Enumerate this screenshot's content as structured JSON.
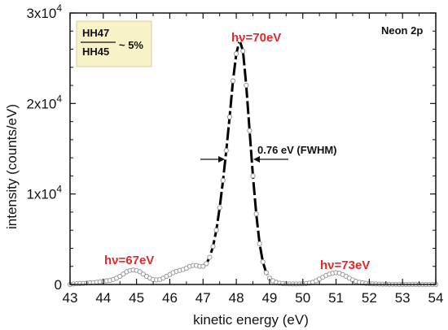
{
  "chart_data": {
    "type": "scatter",
    "xlabel": "kinetic energy (eV)",
    "ylabel": "intensity (counts/eV)",
    "xlim": [
      43,
      54
    ],
    "ylim": [
      0,
      30000
    ],
    "x_ticks": [
      "43",
      "44",
      "45",
      "46",
      "47",
      "48",
      "49",
      "50",
      "51",
      "52",
      "53",
      "54"
    ],
    "y_ticks": [
      {
        "value": 0,
        "base": "0",
        "exp": ""
      },
      {
        "value": 10000,
        "base": "1x10",
        "exp": "4"
      },
      {
        "value": 20000,
        "base": "2x10",
        "exp": "4"
      },
      {
        "value": 30000,
        "base": "3x10",
        "exp": "4"
      }
    ],
    "grid": false,
    "annotations": {
      "panel_label": "Neon 2p",
      "ratio_numerator": "HH47",
      "ratio_denominator": "HH45",
      "ratio_value": "~ 5%",
      "fwhm_label": "0.76 eV (FWHM)",
      "peak_labels": [
        {
          "prefix": "h",
          "nu": "ν",
          "suffix": "=67eV",
          "x": 44.9,
          "y": 1600
        },
        {
          "prefix": "h",
          "nu": "ν",
          "suffix": "=70eV",
          "x": 48.1,
          "y": 27000
        },
        {
          "prefix": "h",
          "nu": "ν",
          "suffix": "=73eV",
          "x": 51.0,
          "y": 1300
        }
      ]
    },
    "colors": {
      "points": "#9a9a9a",
      "line": "#000000",
      "peak_label": "#e0292b",
      "inset_bg": "#f8f2c9"
    },
    "series": [
      {
        "points": [
          [
            43.0,
            0
          ],
          [
            43.1,
            50
          ],
          [
            43.2,
            80
          ],
          [
            43.3,
            100
          ],
          [
            43.4,
            120
          ],
          [
            43.5,
            150
          ],
          [
            43.6,
            180
          ],
          [
            43.7,
            200
          ],
          [
            43.8,
            250
          ],
          [
            43.9,
            300
          ],
          [
            44.0,
            350
          ],
          [
            44.1,
            400
          ],
          [
            44.2,
            450
          ],
          [
            44.3,
            550
          ],
          [
            44.4,
            700
          ],
          [
            44.5,
            900
          ],
          [
            44.6,
            1150
          ],
          [
            44.7,
            1400
          ],
          [
            44.8,
            1550
          ],
          [
            44.9,
            1600
          ],
          [
            45.0,
            1550
          ],
          [
            45.1,
            1400
          ],
          [
            45.2,
            1150
          ],
          [
            45.3,
            900
          ],
          [
            45.4,
            700
          ],
          [
            45.5,
            550
          ],
          [
            45.6,
            500
          ],
          [
            45.7,
            550
          ],
          [
            45.8,
            700
          ],
          [
            45.9,
            900
          ],
          [
            46.0,
            1100
          ],
          [
            46.1,
            1300
          ],
          [
            46.2,
            1450
          ],
          [
            46.3,
            1550
          ],
          [
            46.4,
            1650
          ],
          [
            46.5,
            1800
          ],
          [
            46.6,
            2000
          ],
          [
            46.7,
            2100
          ],
          [
            46.8,
            2100
          ],
          [
            46.9,
            2000
          ],
          [
            47.0,
            2000
          ],
          [
            47.1,
            2300
          ],
          [
            47.2,
            3000
          ],
          [
            47.3,
            4200
          ],
          [
            47.4,
            6000
          ],
          [
            47.5,
            8500
          ],
          [
            47.6,
            11500
          ],
          [
            47.7,
            14800
          ],
          [
            47.8,
            18500
          ],
          [
            47.9,
            22500
          ],
          [
            48.0,
            25500
          ],
          [
            48.1,
            27000
          ],
          [
            48.2,
            25800
          ],
          [
            48.3,
            22000
          ],
          [
            48.4,
            17000
          ],
          [
            48.5,
            12000
          ],
          [
            48.6,
            7800
          ],
          [
            48.7,
            4500
          ],
          [
            48.8,
            2500
          ],
          [
            48.9,
            1300
          ],
          [
            49.0,
            700
          ],
          [
            49.1,
            400
          ],
          [
            49.2,
            250
          ],
          [
            49.3,
            150
          ],
          [
            49.4,
            100
          ],
          [
            49.5,
            80
          ],
          [
            49.6,
            60
          ],
          [
            49.7,
            50
          ],
          [
            49.8,
            50
          ],
          [
            49.9,
            60
          ],
          [
            50.0,
            80
          ],
          [
            50.1,
            100
          ],
          [
            50.2,
            150
          ],
          [
            50.3,
            250
          ],
          [
            50.4,
            400
          ],
          [
            50.5,
            600
          ],
          [
            50.6,
            800
          ],
          [
            50.7,
            1000
          ],
          [
            50.8,
            1150
          ],
          [
            50.9,
            1250
          ],
          [
            51.0,
            1300
          ],
          [
            51.1,
            1250
          ],
          [
            51.2,
            1100
          ],
          [
            51.3,
            900
          ],
          [
            51.4,
            700
          ],
          [
            51.5,
            500
          ],
          [
            51.6,
            350
          ],
          [
            51.7,
            250
          ],
          [
            51.8,
            180
          ],
          [
            51.9,
            120
          ],
          [
            52.0,
            80
          ],
          [
            52.1,
            60
          ],
          [
            52.2,
            50
          ],
          [
            52.3,
            40
          ],
          [
            52.4,
            30
          ],
          [
            52.5,
            30
          ],
          [
            52.6,
            20
          ],
          [
            52.7,
            20
          ],
          [
            52.8,
            20
          ],
          [
            52.9,
            10
          ],
          [
            53.0,
            10
          ],
          [
            53.1,
            10
          ],
          [
            53.2,
            10
          ],
          [
            53.3,
            10
          ],
          [
            53.4,
            10
          ],
          [
            53.5,
            0
          ],
          [
            53.6,
            0
          ],
          [
            53.7,
            0
          ],
          [
            53.8,
            0
          ],
          [
            53.9,
            0
          ],
          [
            54.0,
            0
          ]
        ]
      }
    ]
  }
}
